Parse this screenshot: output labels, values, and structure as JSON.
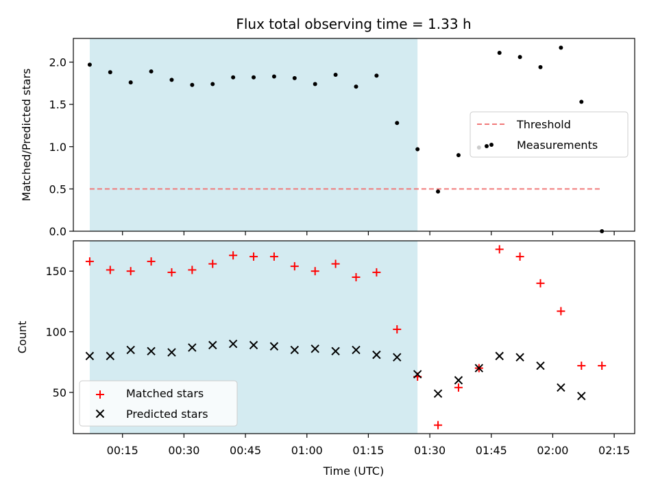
{
  "chart_data": {
    "title": "Flux total observing time = 1.33 h",
    "xlabel": "Time (UTC)",
    "x_ticks": [
      "00:15",
      "00:30",
      "00:45",
      "01:00",
      "01:15",
      "01:30",
      "01:45",
      "02:00",
      "02:15"
    ],
    "x_tick_minutes": [
      15,
      30,
      45,
      60,
      75,
      90,
      105,
      120,
      135
    ],
    "x_range_minutes": [
      3.0,
      140.0
    ],
    "shaded_interval_minutes": [
      7,
      87
    ],
    "shade_color": "#d4ebf1",
    "panels": [
      {
        "type": "scatter",
        "ylabel": "Matched/Predicted stars",
        "ylim": [
          0,
          2.28
        ],
        "y_ticks": [
          0.0,
          0.5,
          1.0,
          1.5,
          2.0
        ],
        "y_tick_labels": [
          "0.0",
          "0.5",
          "1.0",
          "1.5",
          "2.0"
        ],
        "legend": {
          "placement": "center-right",
          "entries": [
            "Threshold",
            "Measurements"
          ]
        },
        "threshold": {
          "name": "Threshold",
          "y": 0.5,
          "x_start": 7,
          "x_end": 132,
          "color": "#f07878"
        },
        "series": [
          {
            "name": "Measurements",
            "marker": "dot",
            "color": "#000000",
            "x": [
              7,
              12,
              17,
              22,
              27,
              32,
              37,
              42,
              47,
              52,
              57,
              62,
              67,
              72,
              77,
              82,
              87,
              92,
              97,
              102,
              107,
              112,
              117,
              122,
              127,
              132
            ],
            "y": [
              1.97,
              1.88,
              1.76,
              1.89,
              1.79,
              1.73,
              1.74,
              1.82,
              1.82,
              1.83,
              1.81,
              1.74,
              1.85,
              1.71,
              1.84,
              1.28,
              0.97,
              0.47,
              0.9,
              0.99,
              2.11,
              2.06,
              1.94,
              2.17,
              1.53,
              0.0
            ]
          }
        ]
      },
      {
        "type": "scatter",
        "ylabel": "Count",
        "ylim": [
          16,
          175
        ],
        "y_ticks": [
          50,
          100,
          150
        ],
        "y_tick_labels": [
          "50",
          "100",
          "150"
        ],
        "legend": {
          "placement": "lower-left",
          "entries": [
            "Matched stars",
            "Predicted stars"
          ]
        },
        "series": [
          {
            "name": "Matched stars",
            "marker": "plus",
            "color": "#ff0000",
            "x": [
              7,
              12,
              17,
              22,
              27,
              32,
              37,
              42,
              47,
              52,
              57,
              62,
              67,
              72,
              77,
              82,
              87,
              92,
              97,
              102,
              107,
              112,
              117,
              122,
              127,
              132
            ],
            "y": [
              158,
              151,
              150,
              158,
              149,
              151,
              156,
              163,
              162,
              162,
              154,
              150,
              156,
              145,
              149,
              102,
              63,
              23,
              54,
              70,
              168,
              162,
              140,
              117,
              72,
              72
            ]
          },
          {
            "name": "Predicted stars",
            "marker": "x",
            "color": "#000000",
            "x": [
              7,
              12,
              17,
              22,
              27,
              32,
              37,
              42,
              47,
              52,
              57,
              62,
              67,
              72,
              77,
              82,
              87,
              92,
              97,
              102,
              107,
              112,
              117,
              122,
              127
            ],
            "y": [
              80,
              80,
              85,
              84,
              83,
              87,
              89,
              90,
              89,
              88,
              85,
              86,
              84,
              85,
              81,
              79,
              65,
              49,
              60,
              70,
              80,
              79,
              72,
              54,
              47
            ]
          }
        ]
      }
    ]
  }
}
